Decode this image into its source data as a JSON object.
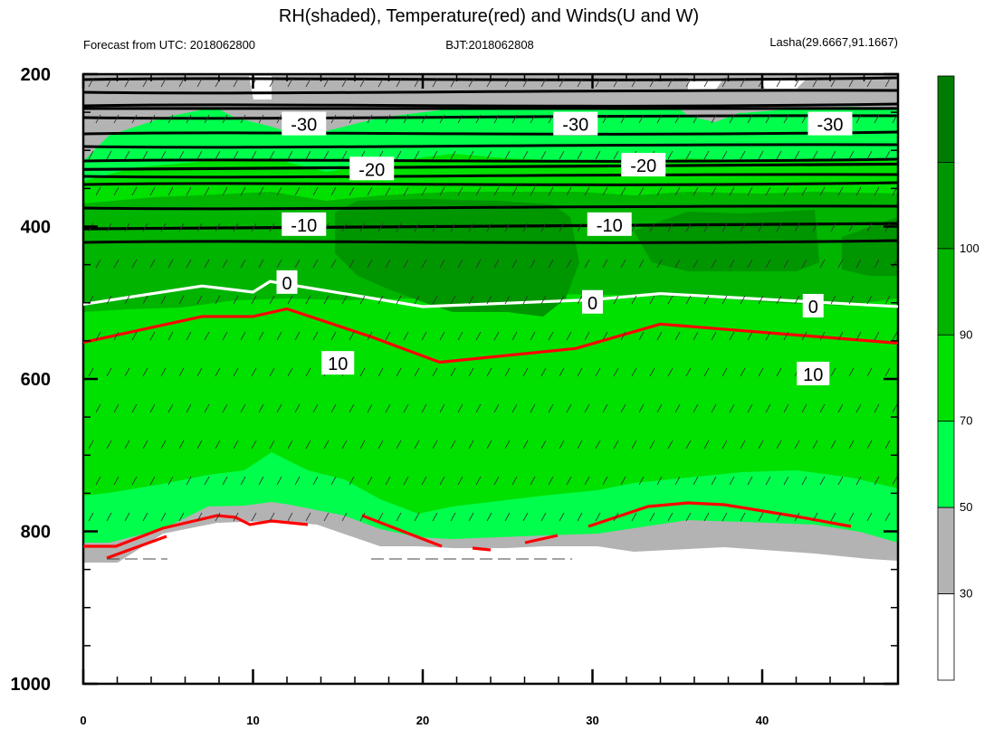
{
  "title": "RH(shaded), Temperature(red) and Winds(U and W)",
  "subtitle_left": "Forecast from UTC: 2018062800",
  "subtitle_center": "BJT:2018062808",
  "subtitle_right": "Lasha(29.6667,91.1667)",
  "chart_data": {
    "type": "heatmap",
    "title": "RH(shaded), Temperature(red) and Winds(U and W)",
    "xlabel": "",
    "ylabel": "",
    "xlim": [
      0,
      48
    ],
    "ylim": [
      1000,
      200
    ],
    "x_ticks": [
      0,
      10,
      20,
      30,
      40
    ],
    "y_ticks": [
      200,
      400,
      600,
      800,
      1000
    ],
    "colorbar": {
      "levels": [
        30,
        50,
        70,
        90,
        100
      ],
      "colors": [
        "#ffffff",
        "#b3b3b3",
        "#00ff4c",
        "#00e100",
        "#00b400",
        "#009600",
        "#007d00"
      ]
    },
    "contour_labels": [
      {
        "text": "-30",
        "x": 13,
        "y": 266
      },
      {
        "text": "-30",
        "x": 29,
        "y": 266
      },
      {
        "text": "-30",
        "x": 44,
        "y": 266
      },
      {
        "text": "-20",
        "x": 17,
        "y": 325
      },
      {
        "text": "-20",
        "x": 33,
        "y": 320
      },
      {
        "text": "-10",
        "x": 13,
        "y": 398
      },
      {
        "text": "-10",
        "x": 31,
        "y": 398
      },
      {
        "text": "0",
        "x": 12,
        "y": 474
      },
      {
        "text": "0",
        "x": 30,
        "y": 500
      },
      {
        "text": "0",
        "x": 43,
        "y": 505
      },
      {
        "text": "10",
        "x": 15,
        "y": 580
      },
      {
        "text": "10",
        "x": 43,
        "y": 594
      }
    ],
    "temperature_series": [
      {
        "level": -30,
        "x": [
          0,
          48
        ],
        "y": [
          245,
          245
        ]
      },
      {
        "level": -20,
        "x": [
          0,
          48
        ],
        "y": [
          325,
          318
        ]
      },
      {
        "level": -10,
        "x": [
          0,
          48
        ],
        "y": [
          403,
          396
        ]
      },
      {
        "level": 0,
        "x": [
          0,
          7,
          10,
          11,
          20,
          30,
          34,
          48
        ],
        "y": [
          502,
          478,
          486,
          472,
          505,
          496,
          488,
          505
        ]
      },
      {
        "level": 10,
        "x": [
          0,
          7,
          10,
          12,
          17,
          21,
          29,
          34,
          48
        ],
        "y": [
          552,
          518,
          518,
          508,
          545,
          578,
          560,
          528,
          553
        ]
      }
    ]
  }
}
